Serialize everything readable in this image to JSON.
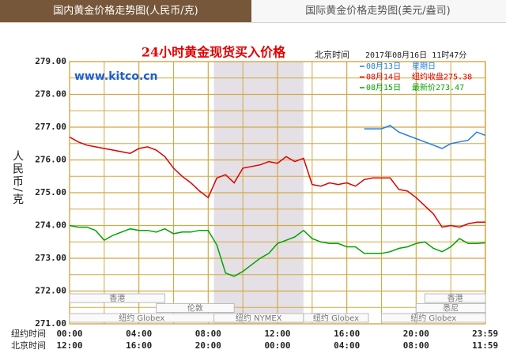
{
  "tabs": [
    {
      "label": "国内黄金价格走势图(人民币/克)",
      "active": true
    },
    {
      "label": "国际黄金价格走势图(美元/盎司)",
      "active": false
    }
  ],
  "chart_data": {
    "type": "line",
    "title": "24小时黄金现货买入价格",
    "watermark": "www.kitco.cn",
    "time_label": "北京时间",
    "timestamp": "2017年08月16日 11时47分",
    "ylabel": "人民币/克",
    "x_row_labels": [
      "纽约时间",
      "北京时间"
    ],
    "x": [
      0,
      0.5,
      1,
      1.5,
      2,
      2.5,
      3,
      3.5,
      4,
      4.5,
      5,
      5.5,
      6,
      6.5,
      7,
      7.5,
      8,
      8.5,
      9,
      9.5,
      10,
      10.5,
      11,
      11.5,
      12,
      12.5,
      13,
      13.5,
      14,
      14.5,
      15,
      15.5,
      16,
      16.5,
      17,
      17.5,
      18,
      18.5,
      19,
      19.5,
      20,
      20.5,
      21,
      21.5,
      22,
      22.5,
      23,
      23.5,
      24
    ],
    "xlim": [
      0,
      24
    ],
    "xticks": [
      {
        "value": 0,
        "label": "00:00",
        "beijing": "12:00"
      },
      {
        "value": 4,
        "label": "04:00",
        "beijing": "16:00"
      },
      {
        "value": 8,
        "label": "08:00",
        "beijing": "20:00"
      },
      {
        "value": 12,
        "label": "12:00",
        "beijing": "00:00"
      },
      {
        "value": 16,
        "label": "16:00",
        "beijing": "04:00"
      },
      {
        "value": 20,
        "label": "20:00",
        "beijing": "08:00"
      },
      {
        "value": 23.983,
        "label": "23:59",
        "beijing": "11:59"
      }
    ],
    "xminorticks": [
      2,
      6,
      10,
      14,
      18,
      22
    ],
    "ylim": [
      271,
      279
    ],
    "yticks": [
      {
        "value": 279,
        "label": "279.00"
      },
      {
        "value": 278,
        "label": "278.00"
      },
      {
        "value": 277,
        "label": "277.00"
      },
      {
        "value": 276,
        "label": "276.00"
      },
      {
        "value": 275,
        "label": "275.00"
      },
      {
        "value": 274,
        "label": "274.00"
      },
      {
        "value": 273,
        "label": "273.00"
      },
      {
        "value": 272,
        "label": "272.00"
      },
      {
        "value": 271,
        "label": "271.00"
      }
    ],
    "yminorticks": [
      278.5,
      277.5,
      276.5,
      275.5,
      274.5,
      273.5,
      272.5,
      271.5
    ],
    "grid": true,
    "grid_color": "#d2a845",
    "session_shade": [
      8.33,
      13.5
    ],
    "sessions": [
      {
        "label": "香港",
        "row": 0,
        "start": 0,
        "end": 5.5
      },
      {
        "label": "香港",
        "row": 0,
        "start": 20.5,
        "end": 24
      },
      {
        "label": "伦敦",
        "row": 1,
        "start": 5,
        "end": 9.5
      },
      {
        "label": "悉尼",
        "row": 1,
        "start": 20,
        "end": 24
      },
      {
        "label": "纽约 Globex",
        "row": 2,
        "start": 0,
        "end": 8.33
      },
      {
        "label": "纽约 NYMEX",
        "row": 2,
        "start": 8.33,
        "end": 13.5
      },
      {
        "label": "纽约 Globex",
        "row": 2,
        "start": 13.5,
        "end": 17.25
      },
      {
        "label": "纽约 Globex",
        "row": 2,
        "start": 18,
        "end": 24
      }
    ],
    "series": [
      {
        "name": "08月13日",
        "note": "星期日",
        "color": "#1e7ee6",
        "values": [
          null,
          null,
          null,
          null,
          null,
          null,
          null,
          null,
          null,
          null,
          null,
          null,
          null,
          null,
          null,
          null,
          null,
          null,
          null,
          null,
          null,
          null,
          null,
          null,
          null,
          null,
          null,
          null,
          null,
          null,
          null,
          null,
          null,
          null,
          276.95,
          276.95,
          276.95,
          277.05,
          276.85,
          276.75,
          276.65,
          276.55,
          276.45,
          276.35,
          276.5,
          276.55,
          276.6,
          276.85,
          276.75
        ]
      },
      {
        "name": "08月14日",
        "note": "纽约收盘275.38",
        "color": "#dd0000",
        "values": [
          276.7,
          276.55,
          276.45,
          276.4,
          276.35,
          276.3,
          276.25,
          276.2,
          276.35,
          276.4,
          276.3,
          276.1,
          275.75,
          275.5,
          275.3,
          275.05,
          274.85,
          275.45,
          275.55,
          275.3,
          275.75,
          275.8,
          275.85,
          275.95,
          275.9,
          276.1,
          275.95,
          276.05,
          275.25,
          275.2,
          275.3,
          275.25,
          275.3,
          275.2,
          275.4,
          275.45,
          275.45,
          275.45,
          275.1,
          275.05,
          274.85,
          274.6,
          274.35,
          273.95,
          274.0,
          273.95,
          274.05,
          274.1,
          274.1
        ]
      },
      {
        "name": "08月15日",
        "note": "最新价273.47",
        "color": "#00a400",
        "values": [
          274.0,
          273.95,
          273.95,
          273.85,
          273.55,
          273.7,
          273.8,
          273.9,
          273.85,
          273.85,
          273.8,
          273.9,
          273.75,
          273.8,
          273.8,
          273.85,
          273.85,
          273.4,
          272.55,
          272.45,
          272.6,
          272.8,
          273.0,
          273.15,
          273.45,
          273.55,
          273.65,
          273.85,
          273.6,
          273.5,
          273.45,
          273.45,
          273.35,
          273.35,
          273.15,
          273.15,
          273.15,
          273.2,
          273.3,
          273.35,
          273.45,
          273.5,
          273.3,
          273.2,
          273.35,
          273.6,
          273.45,
          273.45,
          273.47
        ]
      }
    ]
  }
}
